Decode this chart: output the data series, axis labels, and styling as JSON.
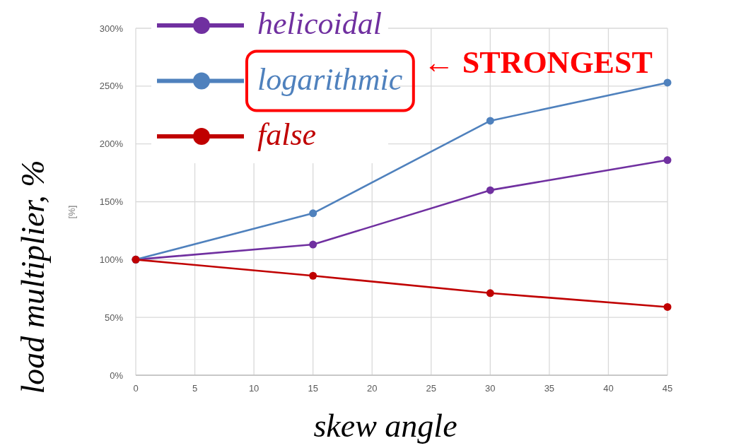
{
  "chart_data": {
    "type": "line",
    "xlabel": "skew angle",
    "ylabel": "load multiplier, %",
    "annotations": [
      "[%]",
      "← STRONGEST"
    ],
    "x": [
      0,
      15,
      30,
      45
    ],
    "series": [
      {
        "name": "helicoidal",
        "color": "#7030a0",
        "values": [
          100,
          113,
          160,
          186
        ]
      },
      {
        "name": "logarithmic",
        "color": "#4f81bd",
        "values": [
          100,
          140,
          220,
          253
        ]
      },
      {
        "name": "false",
        "color": "#c00000",
        "values": [
          100,
          86,
          71,
          59
        ]
      }
    ],
    "xlim": [
      0,
      45
    ],
    "xticks": [
      0,
      5,
      10,
      15,
      20,
      25,
      30,
      35,
      40,
      45
    ],
    "ylim": [
      0,
      300
    ],
    "yticks": [
      {
        "value": 0,
        "label": "0%"
      },
      {
        "value": 50,
        "label": "50%"
      },
      {
        "value": 100,
        "label": "100%"
      },
      {
        "value": 150,
        "label": "150%"
      },
      {
        "value": 200,
        "label": "200%"
      },
      {
        "value": 250,
        "label": "250%"
      },
      {
        "value": 300,
        "label": "300%"
      }
    ],
    "grid": true,
    "legend": "top left",
    "marker": "circle"
  }
}
